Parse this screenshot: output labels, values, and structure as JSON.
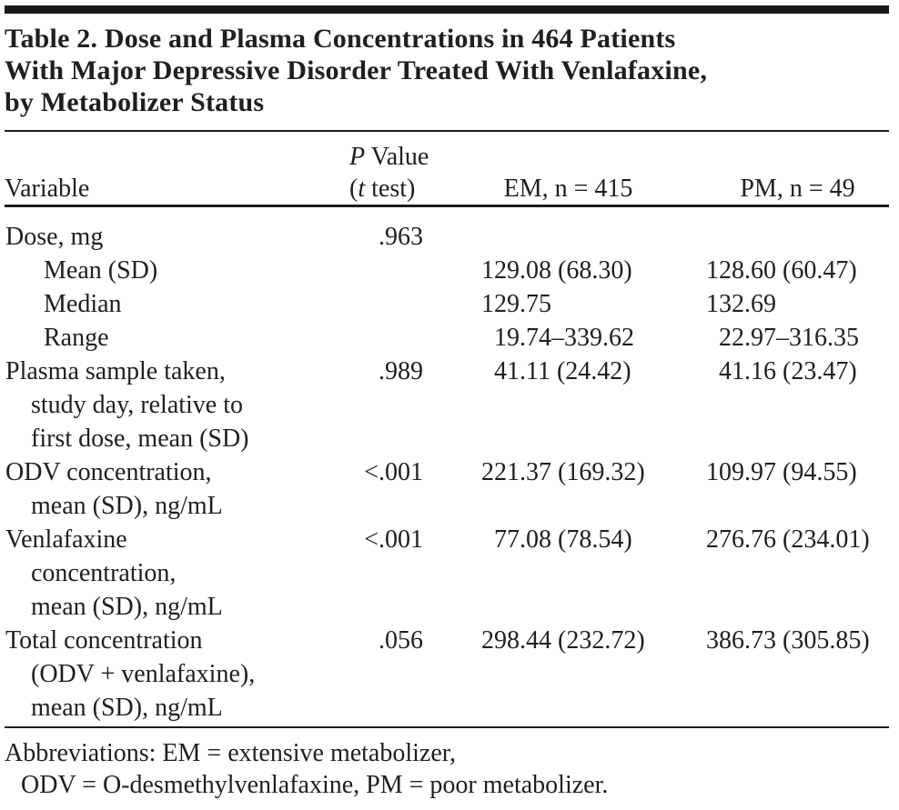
{
  "table": {
    "title_lines": [
      "Table 2. Dose and Plasma Concentrations in 464 Patients",
      "With Major Depressive Disorder Treated With Venlafaxine,",
      "by Metabolizer Status"
    ],
    "columns": {
      "variable": "Variable",
      "p_line1": {
        "italic": "P",
        "rest": " Value"
      },
      "p_line2": {
        "pre": "(",
        "italic": "t",
        "post": " test)"
      },
      "em": "EM, n = 415",
      "pm": "PM, n = 49"
    },
    "rows": [
      {
        "label_lines": [
          "Dose, mg"
        ],
        "sub": false,
        "p": ".963",
        "em": "",
        "pm": ""
      },
      {
        "label_lines": [
          "Mean (SD)"
        ],
        "sub": true,
        "p": "",
        "em": "129.08 (68.30)",
        "pm": "128.60 (60.47)"
      },
      {
        "label_lines": [
          "Median"
        ],
        "sub": true,
        "p": "",
        "em": "129.75",
        "pm": "132.69"
      },
      {
        "label_lines": [
          "Range"
        ],
        "sub": true,
        "p": "",
        "em": "19.74–339.62",
        "pm": "22.97–316.35"
      },
      {
        "label_lines": [
          "Plasma sample taken,",
          "study day, relative to",
          "first dose, mean (SD)"
        ],
        "sub": false,
        "p": ".989",
        "em": "41.11 (24.42)",
        "pm": "41.16 (23.47)"
      },
      {
        "label_lines": [
          "ODV concentration,",
          "mean (SD), ng/mL"
        ],
        "sub": false,
        "p": "<.001",
        "em": "221.37 (169.32)",
        "pm": "109.97 (94.55)"
      },
      {
        "label_lines": [
          "Venlafaxine",
          "concentration,",
          "mean (SD), ng/mL"
        ],
        "sub": false,
        "p": "<.001",
        "em": "77.08 (78.54)",
        "pm": "276.76 (234.01)"
      },
      {
        "label_lines": [
          "Total concentration",
          "(ODV + venlafaxine),",
          "mean (SD), ng/mL"
        ],
        "sub": false,
        "p": ".056",
        "em": "298.44 (232.72)",
        "pm": "386.73 (305.85)"
      }
    ],
    "footnote_lines": [
      "Abbreviations: EM = extensive metabolizer,",
      "ODV = O-desmethylvenlafaxine, PM = poor metabolizer."
    ]
  }
}
